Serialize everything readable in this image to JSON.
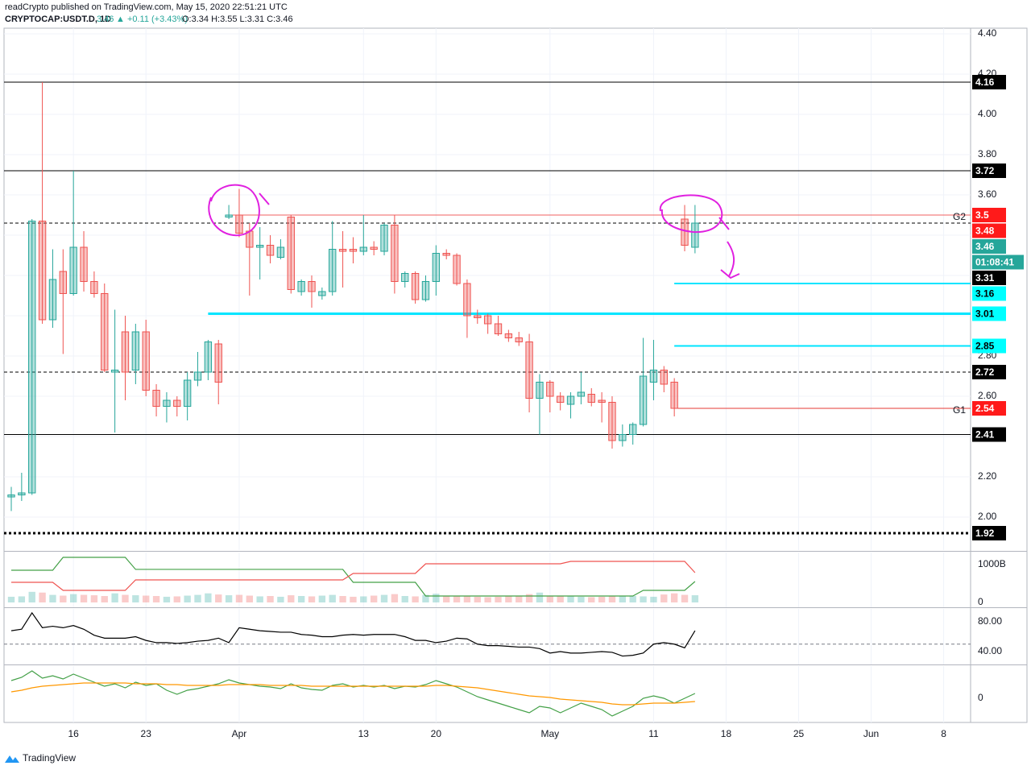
{
  "header": {
    "byline": "readCrypto published on TradingView.com, May 15, 2020 22:51:21 UTC",
    "symbol": "CRYPTOCAP:USDT.D, 1D",
    "last": "3.46",
    "change": "▲ +0.11 (+3.43%)",
    "ohlc": "O:3.34 H:3.55 L:3.31 C:3.46"
  },
  "footer": {
    "brand": "TradingView"
  },
  "chart_data": [
    {
      "type": "candlestick",
      "up_color": "#26a69a",
      "down_color": "#ef5350",
      "open": [
        2.1,
        2.11,
        2.12,
        3.47,
        2.98,
        3.22,
        3.11,
        3.34,
        3.17,
        3.11,
        2.72,
        2.92,
        2.73,
        2.92,
        2.63,
        2.55,
        2.58,
        2.55,
        2.68,
        2.72,
        2.86,
        3.49,
        3.5,
        3.42,
        3.34,
        3.35,
        3.29,
        3.49,
        3.12,
        3.17,
        3.1,
        3.12,
        3.33,
        3.33,
        3.32,
        3.34,
        3.32,
        3.45,
        3.17,
        3.21,
        3.08,
        3.17,
        3.31,
        3.3,
        3.16,
        3.0,
        3.0,
        2.96,
        2.91,
        2.89,
        2.87,
        2.59,
        2.67,
        2.6,
        2.56,
        2.6,
        2.61,
        2.58,
        2.57,
        2.38,
        2.41,
        2.46,
        2.67,
        2.73,
        2.67,
        3.48,
        3.34
      ],
      "high": [
        2.15,
        2.22,
        3.48,
        4.16,
        3.33,
        3.33,
        3.72,
        3.42,
        3.22,
        3.16,
        3.03,
        3.0,
        2.96,
        2.98,
        2.66,
        2.62,
        2.6,
        2.72,
        2.82,
        2.88,
        2.88,
        3.55,
        3.63,
        3.46,
        3.44,
        3.4,
        3.38,
        3.5,
        3.18,
        3.2,
        3.14,
        3.47,
        3.42,
        3.39,
        3.5,
        3.37,
        3.46,
        3.5,
        3.22,
        3.22,
        3.2,
        3.35,
        3.33,
        3.31,
        3.18,
        3.03,
        3.01,
        3.0,
        2.93,
        2.92,
        2.91,
        2.71,
        2.68,
        2.62,
        2.62,
        2.72,
        2.64,
        2.62,
        2.6,
        2.46,
        2.47,
        2.89,
        2.88,
        2.75,
        2.69,
        3.55,
        3.55
      ],
      "low": [
        2.03,
        2.08,
        2.11,
        2.96,
        2.94,
        2.81,
        3.1,
        3.12,
        3.09,
        2.72,
        2.42,
        2.58,
        2.66,
        2.6,
        2.5,
        2.47,
        2.5,
        2.48,
        2.65,
        2.68,
        2.56,
        3.48,
        3.39,
        3.1,
        3.18,
        3.26,
        3.28,
        3.11,
        3.1,
        3.04,
        3.08,
        3.1,
        3.14,
        3.26,
        3.3,
        3.3,
        3.3,
        3.11,
        3.14,
        3.06,
        3.07,
        3.1,
        3.28,
        3.15,
        2.89,
        2.96,
        2.91,
        2.9,
        2.87,
        2.85,
        2.52,
        2.41,
        2.52,
        2.53,
        2.49,
        2.56,
        2.55,
        2.47,
        2.34,
        2.35,
        2.36,
        2.45,
        2.58,
        2.62,
        2.5,
        3.32,
        3.31
      ],
      "close": [
        2.11,
        2.12,
        3.47,
        2.98,
        3.18,
        3.11,
        3.34,
        3.17,
        3.11,
        2.73,
        2.73,
        2.72,
        2.92,
        2.63,
        2.55,
        2.58,
        2.55,
        2.68,
        2.72,
        2.87,
        2.67,
        3.5,
        3.41,
        3.34,
        3.35,
        3.3,
        3.34,
        3.13,
        3.17,
        3.12,
        3.12,
        3.33,
        3.32,
        3.32,
        3.34,
        3.33,
        3.45,
        3.17,
        3.21,
        3.08,
        3.17,
        3.31,
        3.3,
        3.16,
        3.0,
        2.99,
        2.96,
        2.91,
        2.89,
        2.87,
        2.59,
        2.67,
        2.6,
        2.57,
        2.6,
        2.62,
        2.57,
        2.57,
        2.38,
        2.41,
        2.46,
        2.7,
        2.73,
        2.66,
        2.54,
        3.35,
        3.46
      ],
      "xlim": [
        -0.7,
        92.6
      ],
      "ylim": [
        1.836,
        4.428
      ],
      "xticks": [
        {
          "value": 6,
          "label": "16"
        },
        {
          "value": 13,
          "label": "23"
        },
        {
          "value": 22,
          "label": "Apr"
        },
        {
          "value": 34,
          "label": "13"
        },
        {
          "value": 41,
          "label": "20"
        },
        {
          "value": 52,
          "label": "May"
        },
        {
          "value": 62,
          "label": "11"
        },
        {
          "value": 69,
          "label": "18"
        },
        {
          "value": 76,
          "label": "25"
        },
        {
          "value": 83,
          "label": "Jun"
        },
        {
          "value": 90,
          "label": "8"
        }
      ],
      "yticks": [
        {
          "value": 4.4,
          "label": "4.40"
        },
        {
          "value": 4.2,
          "label": "4.20"
        },
        {
          "value": 4.0,
          "label": "4.00"
        },
        {
          "value": 3.8,
          "label": "3.80"
        },
        {
          "value": 3.6,
          "label": "3.60"
        },
        {
          "value": 3.4,
          "label": "3.40"
        },
        {
          "value": 3.2,
          "label": "3.20"
        },
        {
          "value": 3.0,
          "label": "3.00"
        },
        {
          "value": 2.8,
          "label": "2.80"
        },
        {
          "value": 2.6,
          "label": "2.60"
        },
        {
          "value": 2.4,
          "label": "2.40"
        },
        {
          "value": 2.2,
          "label": "2.20"
        },
        {
          "value": 2.0,
          "label": "2.00"
        }
      ],
      "grid": true,
      "levels": [
        {
          "value": 4.16,
          "color": "#000000",
          "style": "solid",
          "width": 1
        },
        {
          "value": 3.72,
          "color": "#000000",
          "style": "solid",
          "width": 1
        },
        {
          "value": 3.5,
          "color": "#f06060",
          "style": "solid",
          "width": 1,
          "start": 21,
          "name": "G2"
        },
        {
          "value": 3.46,
          "color": "#000000",
          "style": "dashed",
          "width": 1
        },
        {
          "value": 3.16,
          "color": "#00e5ff",
          "style": "solid",
          "width": 2,
          "start": 64
        },
        {
          "value": 3.01,
          "color": "#00e5ff",
          "style": "solid",
          "width": 3,
          "start": 19
        },
        {
          "value": 2.85,
          "color": "#00e5ff",
          "style": "solid",
          "width": 2,
          "start": 64
        },
        {
          "value": 2.72,
          "color": "#000000",
          "style": "dashed",
          "width": 1
        },
        {
          "value": 2.54,
          "color": "#e53935",
          "style": "solid",
          "width": 1,
          "start": 64,
          "name": "G1"
        },
        {
          "value": 2.41,
          "color": "#000000",
          "style": "solid",
          "width": 1
        },
        {
          "value": 1.92,
          "color": "#000000",
          "style": "dotted",
          "width": 3
        }
      ],
      "price_labels": [
        {
          "value": 4.16,
          "color": "#000000",
          "text_color": "#ffffff"
        },
        {
          "value": 3.72,
          "color": "#000000",
          "text_color": "#ffffff"
        },
        {
          "value": 3.5,
          "color": "#ff1a1a",
          "text_color": "#ffffff"
        },
        {
          "value": 3.48,
          "color": "#ff1a1a",
          "text_color": "#ffffff"
        },
        {
          "value": 3.46,
          "color": "#26a69a",
          "text_color": "#ffffff"
        },
        {
          "value": 3.31,
          "color": "#000000",
          "text_color": "#ffffff"
        },
        {
          "value": 3.16,
          "color": "#00ffff",
          "text_color": "#000000"
        },
        {
          "value": 3.01,
          "color": "#00ffff",
          "text_color": "#000000"
        },
        {
          "value": 2.85,
          "color": "#00ffff",
          "text_color": "#000000"
        },
        {
          "value": 2.72,
          "color": "#000000",
          "text_color": "#ffffff"
        },
        {
          "value": 2.54,
          "color": "#ff1a1a",
          "text_color": "#ffffff"
        },
        {
          "value": 2.41,
          "color": "#000000",
          "text_color": "#ffffff"
        },
        {
          "value": 1.92,
          "color": "#000000",
          "text_color": "#ffffff"
        }
      ],
      "countdown": "01:08:41",
      "countdown_color": "#26a69a"
    },
    {
      "type": "bar",
      "up_color": "#26a69a",
      "down_color": "#ef5350",
      "values": [
        150,
        160,
        280,
        260,
        200,
        180,
        220,
        200,
        190,
        170,
        240,
        200,
        190,
        180,
        170,
        150,
        160,
        180,
        200,
        240,
        210,
        190,
        200,
        180,
        160,
        170,
        150,
        190,
        170,
        160,
        180,
        200,
        170,
        150,
        160,
        180,
        200,
        220,
        170,
        160,
        200,
        230,
        180,
        170,
        160,
        150,
        140,
        150,
        160,
        170,
        220,
        260,
        180,
        170,
        160,
        150,
        140,
        150,
        170,
        160,
        170,
        160,
        150,
        210,
        240,
        200,
        190
      ],
      "series": [
        {
          "color": "#43a047",
          "values": [
            851,
            851,
            851,
            851,
            851,
            1192,
            1192,
            1192,
            1192,
            1192,
            1192,
            1192,
            873,
            873,
            873,
            873,
            873,
            873,
            873,
            873,
            873,
            873,
            873,
            873,
            873,
            873,
            873,
            873,
            873,
            873,
            873,
            873,
            873,
            532,
            532,
            532,
            532,
            532,
            532,
            532,
            170,
            170,
            170,
            170,
            170,
            170,
            170,
            170,
            170,
            170,
            170,
            170,
            170,
            170,
            170,
            170,
            170,
            170,
            170,
            170,
            170,
            319,
            319,
            319,
            319,
            319,
            553
          ]
        },
        {
          "color": "#ef5350",
          "values": [
            532,
            532,
            532,
            532,
            532,
            319,
            319,
            319,
            319,
            319,
            319,
            319,
            596,
            596,
            596,
            596,
            596,
            596,
            596,
            596,
            596,
            596,
            596,
            596,
            596,
            596,
            596,
            596,
            596,
            596,
            596,
            596,
            596,
            766,
            766,
            766,
            766,
            766,
            766,
            766,
            1021,
            1021,
            1021,
            1021,
            1021,
            1021,
            1021,
            1021,
            1021,
            1021,
            1021,
            1021,
            1021,
            1021,
            1085,
            1085,
            1085,
            1085,
            1085,
            1085,
            1085,
            1085,
            1085,
            1085,
            1085,
            1085,
            787
          ]
        }
      ],
      "ylim": [
        -128,
        1319
      ],
      "yticks": [
        {
          "value": 1000,
          "label": "1000B"
        },
        0
      ]
    },
    {
      "type": "line",
      "midline": 50,
      "series": [
        {
          "color": "#000000",
          "values": [
            68,
            70,
            92,
            72,
            74,
            72,
            75,
            70,
            62,
            58,
            58,
            58,
            60,
            55,
            52,
            52,
            51,
            52,
            54,
            55,
            58,
            52,
            72,
            70,
            68,
            67,
            66,
            66,
            63,
            62,
            60,
            60,
            62,
            63,
            62,
            63,
            63,
            63,
            60,
            55,
            55,
            52,
            54,
            58,
            57,
            50,
            48,
            48,
            47,
            46,
            46,
            44,
            38,
            40,
            38,
            38,
            39,
            40,
            39,
            34,
            35,
            38,
            50,
            52,
            50,
            45,
            68
          ]
        }
      ],
      "ylim": [
        22.7,
        97.3
      ],
      "yticks": [
        {
          "value": 80,
          "label": "80.00"
        },
        {
          "value": 40,
          "label": "40.00"
        }
      ]
    },
    {
      "type": "line",
      "series": [
        {
          "color": "#43a047",
          "values": [
            0.22,
            0.26,
            0.34,
            0.25,
            0.28,
            0.24,
            0.3,
            0.25,
            0.2,
            0.15,
            0.18,
            0.13,
            0.2,
            0.16,
            0.18,
            0.1,
            0.05,
            0.1,
            0.12,
            0.15,
            0.18,
            0.23,
            0.19,
            0.17,
            0.15,
            0.14,
            0.12,
            0.18,
            0.13,
            0.11,
            0.1,
            0.16,
            0.18,
            0.14,
            0.16,
            0.14,
            0.16,
            0.12,
            0.15,
            0.14,
            0.17,
            0.22,
            0.18,
            0.14,
            0.08,
            0.02,
            -0.02,
            -0.06,
            -0.1,
            -0.14,
            -0.18,
            -0.1,
            -0.12,
            -0.18,
            -0.12,
            -0.06,
            -0.1,
            -0.14,
            -0.22,
            -0.16,
            -0.1,
            0.0,
            0.03,
            0.0,
            -0.06,
            0.0,
            0.06
          ]
        },
        {
          "color": "#ff9800",
          "values": [
            0.08,
            0.1,
            0.13,
            0.15,
            0.16,
            0.17,
            0.18,
            0.19,
            0.19,
            0.19,
            0.19,
            0.19,
            0.18,
            0.18,
            0.18,
            0.17,
            0.17,
            0.16,
            0.16,
            0.16,
            0.16,
            0.17,
            0.17,
            0.17,
            0.17,
            0.16,
            0.16,
            0.16,
            0.16,
            0.15,
            0.15,
            0.15,
            0.15,
            0.15,
            0.15,
            0.15,
            0.15,
            0.15,
            0.15,
            0.15,
            0.15,
            0.16,
            0.16,
            0.15,
            0.14,
            0.13,
            0.11,
            0.09,
            0.07,
            0.05,
            0.03,
            0.02,
            0.01,
            -0.01,
            -0.02,
            -0.03,
            -0.04,
            -0.05,
            -0.07,
            -0.08,
            -0.08,
            -0.07,
            -0.06,
            -0.06,
            -0.06,
            -0.05,
            -0.04
          ]
        }
      ],
      "ylim": [
        -0.3,
        0.4
      ],
      "yticks": [
        0
      ]
    }
  ]
}
